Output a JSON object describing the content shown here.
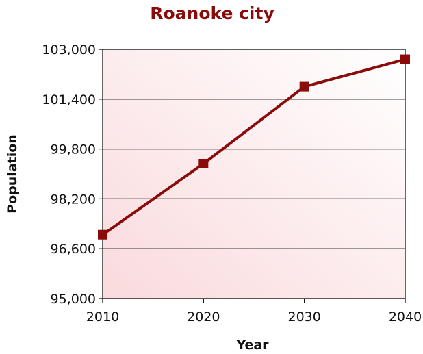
{
  "chart_data": {
    "type": "line",
    "title": "Roanoke city",
    "xlabel": "Year",
    "ylabel": "Population",
    "x": [
      2010,
      2020,
      2030,
      2040
    ],
    "x_ticks": [
      "2010",
      "2020",
      "2030",
      "2040"
    ],
    "y_ticks": [
      "95,000",
      "96,600",
      "98,200",
      "99,800",
      "101,400",
      "103,000"
    ],
    "ylim": [
      95000,
      103000
    ],
    "grid": "horizontal",
    "series": [
      {
        "values": [
          97050,
          99330,
          101800,
          102680
        ],
        "color": "#8b0a0a"
      }
    ],
    "colors": {
      "line": "#8b0a0a",
      "title": "#8b0a0a",
      "plot_bg_light": "#ffffff",
      "plot_bg_tint": "#fadadd"
    }
  }
}
